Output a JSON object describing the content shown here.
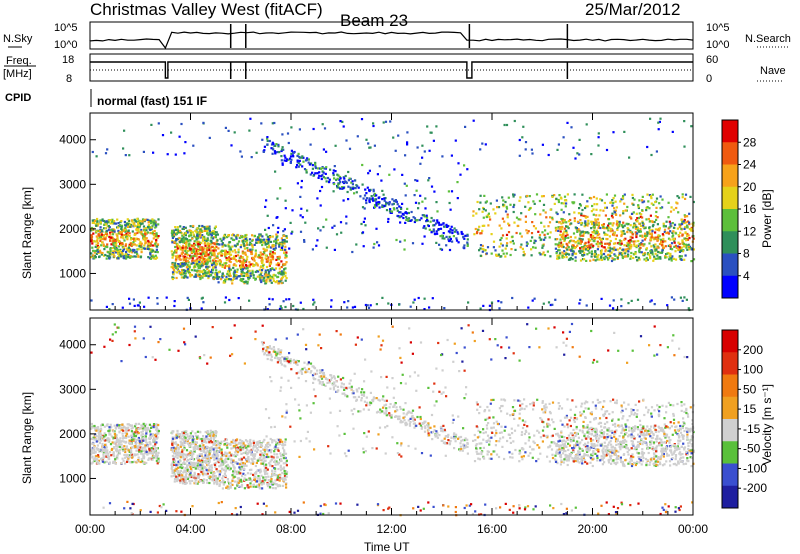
{
  "header": {
    "station": "Christmas Valley West (fitACF)",
    "beam": "Beam 23",
    "date": "25/Mar/2012"
  },
  "strip_nsky": {
    "left_label": "N.Sky",
    "ytick_top": "10^5",
    "ytick_bottom": "10^0",
    "right_label": "N.Search",
    "rtick_top": "10^5",
    "rtick_bottom": "10^0"
  },
  "strip_freq": {
    "left_label_1": "Freq.",
    "left_label_2": "[MHz]",
    "ytick_top": "18",
    "ytick_bottom": "8",
    "right_label": "Nave",
    "rtick_top": "60",
    "rtick_bottom": "0"
  },
  "cpid": {
    "label": "CPID",
    "text": "normal (fast) 151 IF"
  },
  "power_panel": {
    "ylabel": "Slant Range [km]",
    "yticks": [
      "4000",
      "3000",
      "2000",
      "1000"
    ],
    "colorbar_label": "Power [dB]",
    "colorbar_ticks": [
      "28",
      "24",
      "20",
      "16",
      "12",
      "8",
      "4"
    ]
  },
  "velocity_panel": {
    "ylabel": "Slant Range [km]",
    "yticks": [
      "4000",
      "3000",
      "2000",
      "1000"
    ],
    "colorbar_label": "Velocity [m s⁻¹]",
    "colorbar_ticks": [
      "200",
      "100",
      "50",
      "15",
      "-15",
      "-50",
      "-100",
      "-200"
    ]
  },
  "xaxis": {
    "ticks": [
      "00:00",
      "04:00",
      "08:00",
      "12:00",
      "16:00",
      "20:00",
      "00:00"
    ],
    "label": "Time UT"
  },
  "chart_data": {
    "type": "heatmap",
    "x_range_hours": [
      0,
      24
    ],
    "y_range_km": [
      180,
      4600
    ],
    "power_colors": [
      "#0000ff",
      "#2a50c0",
      "#2f8f5a",
      "#5cbf3a",
      "#e5d21a",
      "#f7a21a",
      "#f05a10",
      "#e00000"
    ],
    "velocity_colors": [
      "#1f1fa0",
      "#3a4fd0",
      "#59c03a",
      "#cfcfcf",
      "#f0a020",
      "#f07a10",
      "#e03010",
      "#d80000"
    ],
    "power_regions": [
      {
        "t0": 0.0,
        "t1": 2.7,
        "r0": 1350,
        "r1": 2250,
        "level": "high"
      },
      {
        "t0": 3.2,
        "t1": 5.0,
        "r0": 900,
        "r1": 2100,
        "level": "mid"
      },
      {
        "t0": 5.0,
        "t1": 7.8,
        "r0": 800,
        "r1": 1900,
        "level": "high"
      },
      {
        "t0": 6.8,
        "t1": 15.0,
        "r0": 1500,
        "r1": 3500,
        "level": "low"
      },
      {
        "t0": 15.2,
        "t1": 24.0,
        "r0": 1400,
        "r1": 2800,
        "level": "mid"
      },
      {
        "t0": 18.5,
        "t1": 24.0,
        "r0": 1300,
        "r1": 2200,
        "level": "high"
      }
    ]
  }
}
